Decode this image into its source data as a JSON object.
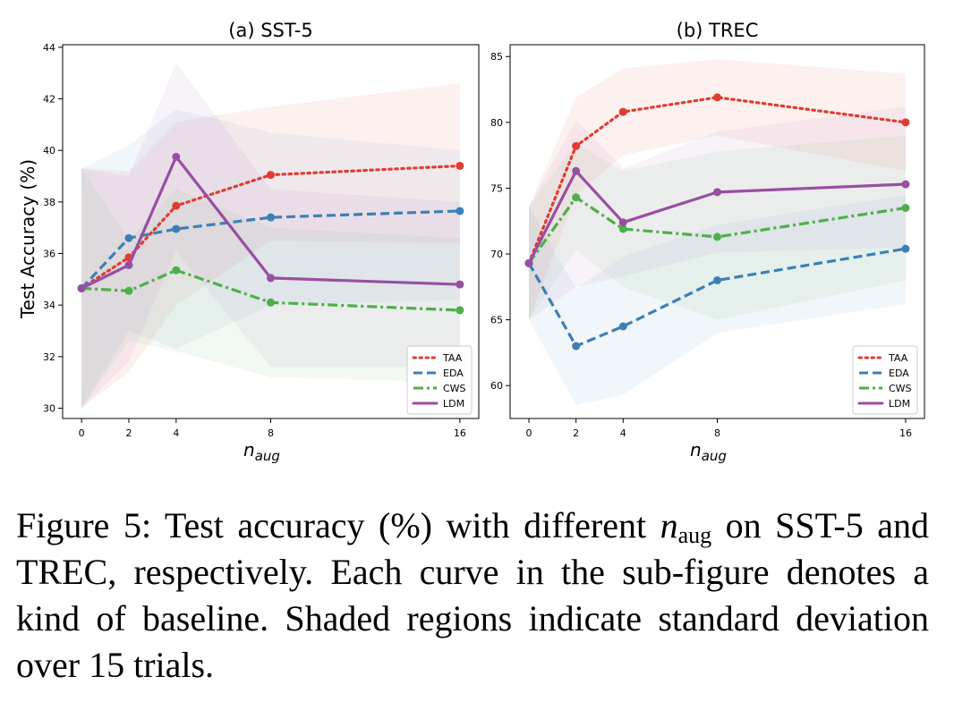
{
  "chart_data": [
    {
      "type": "line",
      "title": "(a) SST-5",
      "xlabel_base": "n",
      "xlabel_sub": "aug",
      "ylabel": "Test Accuracy (%)",
      "x": [
        0,
        2,
        4,
        8,
        16
      ],
      "xlim": [
        -0.8,
        16.8
      ],
      "ylim": [
        29.6,
        44.1
      ],
      "yticks": [
        30,
        32,
        34,
        36,
        38,
        40,
        42,
        44
      ],
      "legend_position": "lower-right",
      "grid": false,
      "series": [
        {
          "name": "TAA",
          "style": "dotted",
          "color": "#e03c31",
          "values": [
            34.65,
            35.85,
            37.85,
            39.05,
            39.4
          ],
          "lower": [
            30.0,
            31.4,
            34.0,
            36.5,
            36.4
          ],
          "upper": [
            39.3,
            39.2,
            41.1,
            41.7,
            42.6
          ]
        },
        {
          "name": "EDA",
          "style": "dashed",
          "color": "#3c7fb6",
          "values": [
            34.65,
            36.6,
            36.95,
            37.4,
            37.65
          ],
          "lower": [
            30.0,
            33.0,
            32.3,
            34.0,
            34.2
          ],
          "upper": [
            39.3,
            40.2,
            41.6,
            40.7,
            40.0
          ]
        },
        {
          "name": "CWS",
          "style": "dashdot",
          "color": "#4daf4a",
          "values": [
            34.65,
            34.55,
            35.35,
            34.1,
            33.8
          ],
          "lower": [
            30.0,
            32.6,
            32.2,
            31.2,
            31.0
          ],
          "upper": [
            39.3,
            36.5,
            38.5,
            37.0,
            36.6
          ]
        },
        {
          "name": "LDM",
          "style": "solid",
          "color": "#984ea3",
          "values": [
            34.65,
            35.55,
            39.75,
            35.05,
            34.8
          ],
          "lower": [
            30.0,
            31.8,
            36.1,
            31.6,
            31.6
          ],
          "upper": [
            39.3,
            39.0,
            43.4,
            38.5,
            38.0
          ]
        }
      ]
    },
    {
      "type": "line",
      "title": "(b) TREC",
      "xlabel_base": "n",
      "xlabel_sub": "aug",
      "ylabel": "",
      "x": [
        0,
        2,
        4,
        8,
        16
      ],
      "xlim": [
        -0.8,
        16.8
      ],
      "ylim": [
        57.5,
        85.9
      ],
      "yticks": [
        60,
        65,
        70,
        75,
        80,
        85
      ],
      "legend_position": "lower-right",
      "grid": false,
      "series": [
        {
          "name": "TAA",
          "style": "dotted",
          "color": "#e03c31",
          "values": [
            69.3,
            78.2,
            80.8,
            81.9,
            80.0
          ],
          "lower": [
            65.0,
            74.5,
            77.5,
            79.0,
            76.3
          ],
          "upper": [
            73.6,
            81.9,
            84.1,
            84.8,
            83.7
          ]
        },
        {
          "name": "EDA",
          "style": "dashed",
          "color": "#3c7fb6",
          "values": [
            69.3,
            63.0,
            64.5,
            68.0,
            70.4
          ],
          "lower": [
            65.0,
            58.5,
            59.3,
            64.0,
            66.2
          ],
          "upper": [
            73.6,
            67.4,
            69.8,
            72.2,
            74.5
          ]
        },
        {
          "name": "CWS",
          "style": "dashdot",
          "color": "#4daf4a",
          "values": [
            69.3,
            74.3,
            71.9,
            71.3,
            73.5
          ],
          "lower": [
            65.0,
            70.3,
            67.5,
            65.0,
            68.0
          ],
          "upper": [
            73.6,
            78.4,
            76.3,
            77.8,
            79.0
          ]
        },
        {
          "name": "LDM",
          "style": "solid",
          "color": "#984ea3",
          "values": [
            69.3,
            76.3,
            72.4,
            74.7,
            75.3
          ],
          "lower": [
            65.0,
            67.5,
            68.3,
            70.1,
            70.5
          ],
          "upper": [
            73.6,
            80.2,
            76.5,
            79.3,
            81.2
          ]
        }
      ]
    }
  ],
  "caption": {
    "prefix": "Figure 5: Test accuracy (%) with different ",
    "math_base": "n",
    "math_sub": "aug",
    "suffix": " on SST-5 and TREC, respectively. Each curve in the sub-figure denotes a kind of baseline.  Shaded regions indicate standard deviation over 15 trials."
  }
}
